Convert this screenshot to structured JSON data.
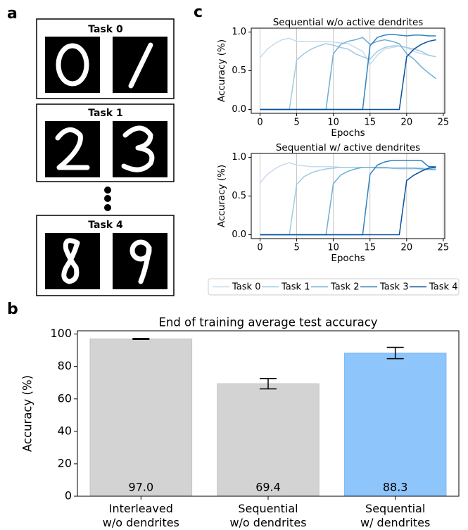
{
  "panel_a": {
    "label": "a",
    "tasks": [
      "Task 0",
      "Task 1",
      "Task 4"
    ]
  },
  "chart_data": [
    {
      "type": "line",
      "panel_label": "c",
      "title": "Sequential w/o active dendrites",
      "xlabel": "Epochs",
      "ylabel": "Accuracy (%)",
      "x": [
        0,
        1,
        2,
        3,
        4,
        5,
        6,
        7,
        8,
        9,
        10,
        11,
        12,
        13,
        14,
        15,
        16,
        17,
        18,
        19,
        20,
        21,
        22,
        23,
        24
      ],
      "xlim": [
        -1.2,
        25.2
      ],
      "ylim": [
        -0.05,
        1.05
      ],
      "xticks": [
        0,
        5,
        10,
        15,
        20,
        25
      ],
      "yticks": [
        {
          "value": 0,
          "label": "0.0"
        },
        {
          "value": 0.5,
          "label": "0.5"
        },
        {
          "value": 1,
          "label": "1.0"
        }
      ],
      "grid": "x",
      "legend": "below",
      "series": [
        {
          "name": "Task 0",
          "color": "#c6dbef",
          "values": [
            0.67,
            0.78,
            0.85,
            0.9,
            0.92,
            0.88,
            0.88,
            0.88,
            0.88,
            0.88,
            0.87,
            0.86,
            0.85,
            0.8,
            0.75,
            0.58,
            0.7,
            0.78,
            0.8,
            0.82,
            0.8,
            0.75,
            0.72,
            0.7,
            0.68
          ]
        },
        {
          "name": "Task 1",
          "color": "#9ecae1",
          "values": [
            0,
            0,
            0,
            0,
            0,
            0.64,
            0.72,
            0.78,
            0.82,
            0.85,
            0.83,
            0.8,
            0.78,
            0.72,
            0.68,
            0.65,
            0.75,
            0.8,
            0.82,
            0.82,
            0.8,
            0.78,
            0.75,
            0.7,
            0.68
          ]
        },
        {
          "name": "Task 2",
          "color": "#6baed6",
          "values": [
            0,
            0,
            0,
            0,
            0,
            0,
            0,
            0,
            0,
            0,
            0.72,
            0.84,
            0.88,
            0.9,
            0.93,
            0.84,
            0.88,
            0.9,
            0.88,
            0.85,
            0.72,
            0.65,
            0.55,
            0.47,
            0.4
          ]
        },
        {
          "name": "Task 3",
          "color": "#3182bd",
          "values": [
            0,
            0,
            0,
            0,
            0,
            0,
            0,
            0,
            0,
            0,
            0,
            0,
            0,
            0,
            0,
            0.82,
            0.93,
            0.96,
            0.97,
            0.96,
            0.95,
            0.96,
            0.96,
            0.95,
            0.95
          ]
        },
        {
          "name": "Task 4",
          "color": "#08519c",
          "values": [
            0,
            0,
            0,
            0,
            0,
            0,
            0,
            0,
            0,
            0,
            0,
            0,
            0,
            0,
            0,
            0,
            0,
            0,
            0,
            0,
            0.68,
            0.78,
            0.84,
            0.88,
            0.9
          ]
        }
      ]
    },
    {
      "type": "line",
      "title": "Sequential w/ active dendrites",
      "xlabel": "Epochs",
      "ylabel": "Accuracy (%)",
      "x": [
        0,
        1,
        2,
        3,
        4,
        5,
        6,
        7,
        8,
        9,
        10,
        11,
        12,
        13,
        14,
        15,
        16,
        17,
        18,
        19,
        20,
        21,
        22,
        23,
        24
      ],
      "xlim": [
        -1.2,
        25.2
      ],
      "ylim": [
        -0.05,
        1.05
      ],
      "xticks": [
        0,
        5,
        10,
        15,
        20,
        25
      ],
      "yticks": [
        {
          "value": 0,
          "label": "0.0"
        },
        {
          "value": 0.5,
          "label": "0.5"
        },
        {
          "value": 1,
          "label": "1.0"
        }
      ],
      "grid": "x",
      "series": [
        {
          "color": "#c6dbef",
          "values": [
            0.67,
            0.78,
            0.85,
            0.9,
            0.93,
            0.9,
            0.89,
            0.88,
            0.88,
            0.88,
            0.88,
            0.87,
            0.87,
            0.87,
            0.87,
            0.87,
            0.86,
            0.86,
            0.86,
            0.85,
            0.85,
            0.85,
            0.85,
            0.84,
            0.84
          ]
        },
        {
          "color": "#9ecae1",
          "values": [
            0,
            0,
            0,
            0,
            0,
            0.65,
            0.75,
            0.8,
            0.83,
            0.85,
            0.86,
            0.87,
            0.87,
            0.87,
            0.87,
            0.87,
            0.87,
            0.87,
            0.86,
            0.86,
            0.86,
            0.86,
            0.86,
            0.85,
            0.85
          ]
        },
        {
          "color": "#6baed6",
          "values": [
            0,
            0,
            0,
            0,
            0,
            0,
            0,
            0,
            0,
            0,
            0.66,
            0.77,
            0.82,
            0.85,
            0.87,
            0.87,
            0.87,
            0.87,
            0.86,
            0.86,
            0.86,
            0.86,
            0.85,
            0.84,
            0.84
          ]
        },
        {
          "color": "#3182bd",
          "values": [
            0,
            0,
            0,
            0,
            0,
            0,
            0,
            0,
            0,
            0,
            0,
            0,
            0,
            0,
            0,
            0.78,
            0.9,
            0.94,
            0.96,
            0.96,
            0.96,
            0.96,
            0.96,
            0.88,
            0.88
          ]
        },
        {
          "color": "#08519c",
          "values": [
            0,
            0,
            0,
            0,
            0,
            0,
            0,
            0,
            0,
            0,
            0,
            0,
            0,
            0,
            0,
            0,
            0,
            0,
            0,
            0,
            0.7,
            0.77,
            0.82,
            0.86,
            0.87
          ]
        }
      ]
    },
    {
      "type": "bar",
      "panel_label": "b",
      "title": "End of training average test accuracy",
      "ylabel": "Accuracy (%)",
      "categories": [
        "Interleaved\nw/o dendrites",
        "Sequential\nw/o dendrites",
        "Sequential\nw/ dendrites"
      ],
      "values": [
        97.0,
        69.4,
        88.3
      ],
      "value_labels": [
        "97.0",
        "69.4",
        "88.3"
      ],
      "errors": [
        0.3,
        3.2,
        3.5
      ],
      "colors": [
        "#d3d3d3",
        "#d3d3d3",
        "#8ec5fb"
      ],
      "ylim": [
        0,
        102
      ],
      "yticks": [
        0,
        20,
        40,
        60,
        80,
        100
      ]
    }
  ]
}
